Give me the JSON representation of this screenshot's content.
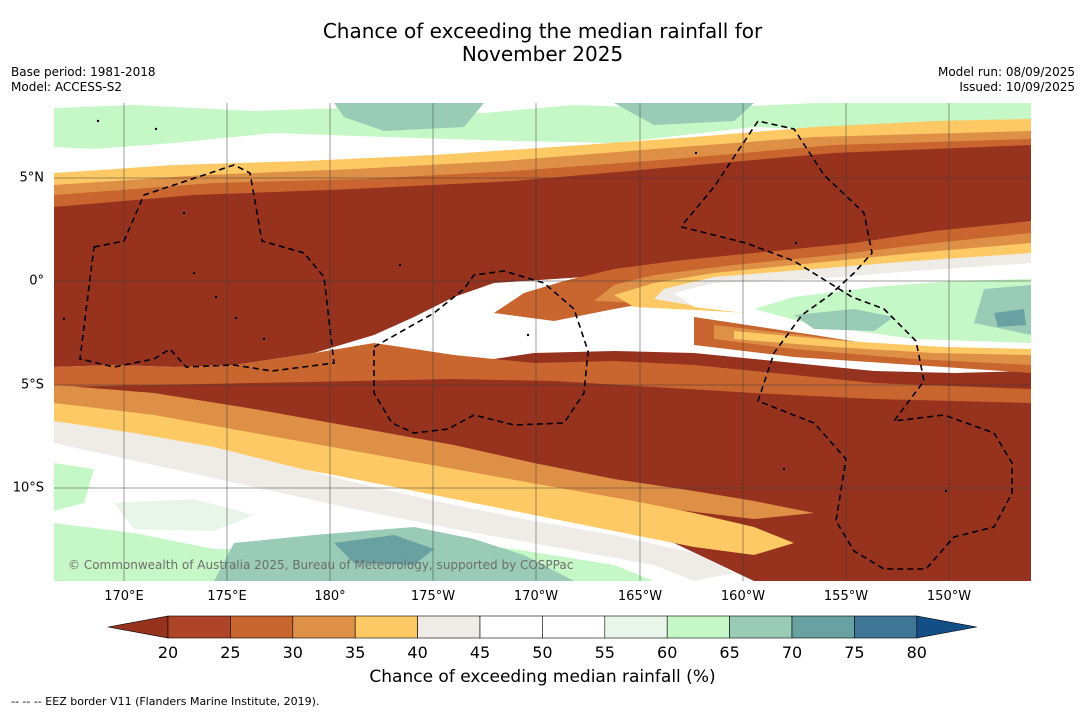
{
  "title": {
    "line1": "Chance of exceeding the median rainfall for",
    "line2": "November 2025"
  },
  "meta": {
    "base_period": "Base period: 1981-2018",
    "model": "Model: ACCESS-S2",
    "model_run": "Model run: 08/09/2025",
    "issued": "Issued: 10/09/2025"
  },
  "map": {
    "longitude_labels": [
      "170°E",
      "175°E",
      "180°",
      "175°W",
      "170°W",
      "165°W",
      "160°W",
      "155°W",
      "150°W"
    ],
    "latitude_labels": [
      "5°N",
      "0°",
      "5°S",
      "10°S"
    ],
    "copyright": "© Commonwealth of Australia 2025, Bureau of Meteorology, supported by COSPPac",
    "lon_range": [
      "167.5°E",
      "~147°W"
    ],
    "lat_range": [
      "~8°N",
      "~14.5°S"
    ]
  },
  "colorbar": {
    "label": "Chance of exceeding median rainfall (%)",
    "ticks": [
      "20",
      "25",
      "30",
      "35",
      "40",
      "45",
      "50",
      "55",
      "60",
      "65",
      "70",
      "75",
      "80"
    ],
    "colors": [
      "#96321e",
      "#ae4528",
      "#c9652e",
      "#de9046",
      "#fdc965",
      "#efebe7",
      "#ffffff",
      "#ffffff",
      "#e9f5e8",
      "#c6f7c6",
      "#99cbb6",
      "#69a1a3",
      "#3f7595",
      "#134e86"
    ]
  },
  "legend_note": "--  --  -- EEZ border V11 (Flanders Marine Institute, 2019)."
}
